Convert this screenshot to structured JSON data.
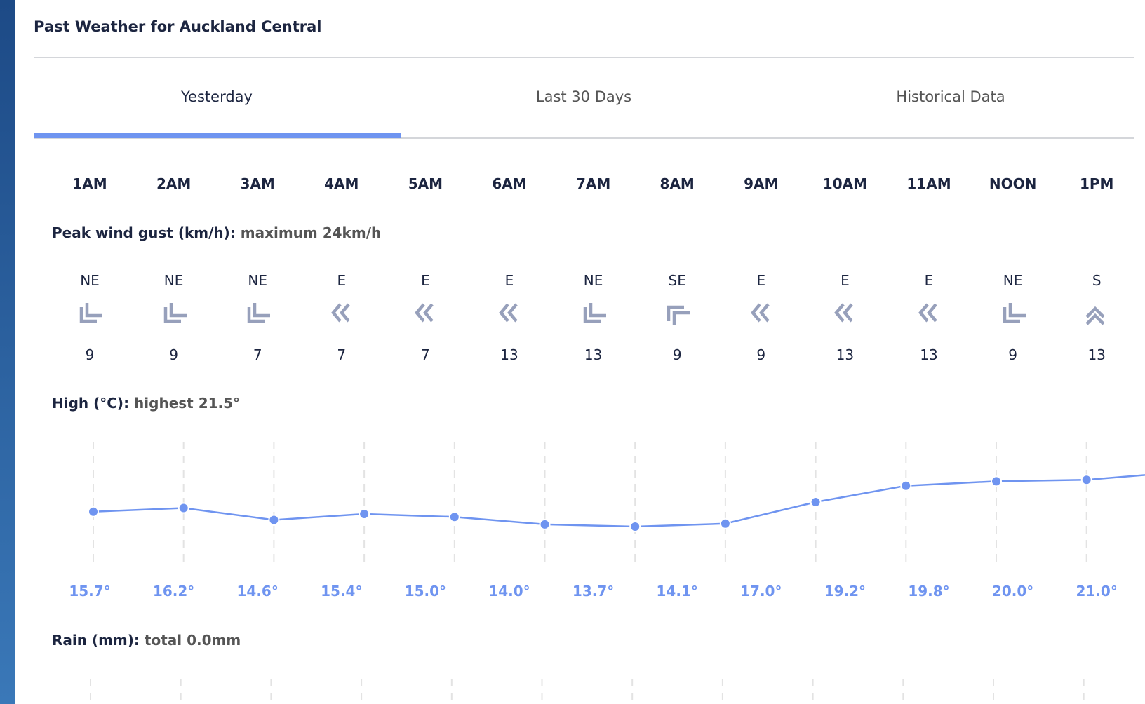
{
  "title": "Past Weather for Auckland Central",
  "tabs": [
    {
      "label": "Yesterday",
      "active": true
    },
    {
      "label": "Last 30 Days"
    },
    {
      "label": "Historical Data"
    }
  ],
  "hours": [
    "1AM",
    "2AM",
    "3AM",
    "4AM",
    "5AM",
    "6AM",
    "7AM",
    "8AM",
    "9AM",
    "10AM",
    "11AM",
    "NOON",
    "1PM"
  ],
  "wind": {
    "label": "Peak wind gust (km/h):",
    "summary": "maximum 24km/h",
    "directions": [
      "NE",
      "NE",
      "NE",
      "E",
      "E",
      "E",
      "NE",
      "SE",
      "E",
      "E",
      "E",
      "NE",
      "S"
    ],
    "speeds": [
      "9",
      "9",
      "7",
      "7",
      "7",
      "13",
      "13",
      "9",
      "9",
      "13",
      "13",
      "9",
      "13"
    ],
    "icon_color": "#97a0bb"
  },
  "high": {
    "label": "High (°C):",
    "summary": "highest 21.5°"
  },
  "rain": {
    "label": "Rain (mm):",
    "summary": "total 0.0mm"
  },
  "accent": "#6f94f0",
  "chart_data": {
    "type": "line",
    "categories": [
      "1AM",
      "2AM",
      "3AM",
      "4AM",
      "5AM",
      "6AM",
      "7AM",
      "8AM",
      "9AM",
      "10AM",
      "11AM",
      "NOON",
      "1PM"
    ],
    "values": [
      15.7,
      16.2,
      14.6,
      15.4,
      15.0,
      14.0,
      13.7,
      14.1,
      17.0,
      19.2,
      19.8,
      20.0,
      21.0
    ],
    "value_labels": [
      "15.7°",
      "16.2°",
      "14.6°",
      "15.4°",
      "15.0°",
      "14.0°",
      "13.7°",
      "14.1°",
      "17.0°",
      "19.2°",
      "19.8°",
      "20.0°",
      "21.0°"
    ],
    "grid": "vertical dashed"
  }
}
